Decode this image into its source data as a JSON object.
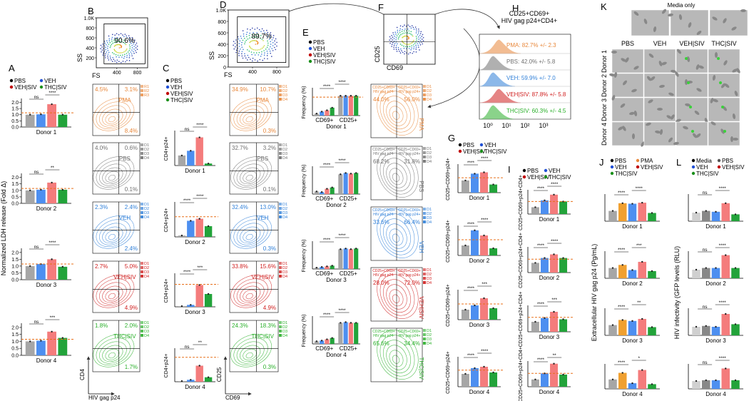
{
  "panels": {
    "A": {
      "letter": "A",
      "legend": [
        "PBS",
        "VEH",
        "VEH|SIV",
        "THC|SIV"
      ],
      "legend_colors": [
        "#000000",
        "#1f4fd6",
        "#c00000",
        "#1a8f1a"
      ],
      "colors": [
        "#a6a6a6",
        "#4d8ff0",
        "#f47c7c",
        "#22a33a"
      ],
      "ylabel": "Normalized LDH release (Fold Δ)",
      "ylim": [
        0,
        2.2
      ],
      "yticks": [
        {
          "value": 0,
          "label": "0.0"
        },
        {
          "value": 0.5,
          "label": "0.5"
        },
        {
          "value": 1,
          "label": "1.0"
        },
        {
          "value": 1.5,
          "label": "1.5"
        },
        {
          "value": 2,
          "label": "2.0"
        }
      ],
      "plots": [
        {
          "title": "Donor 1",
          "values": [
            1,
            1.03,
            1.85,
            1.0
          ],
          "ref": 1.15,
          "sig": [
            "ns",
            "****"
          ]
        },
        {
          "title": "Donor 2",
          "values": [
            1,
            1.05,
            1.6,
            1.05
          ],
          "ref": 1.15,
          "sig": [
            "ns",
            "**"
          ]
        },
        {
          "title": "Donor 3",
          "values": [
            1,
            1.15,
            1.5,
            0.95
          ],
          "ref": 1.15,
          "sig": [
            "ns",
            "****"
          ]
        },
        {
          "title": "Donor 4",
          "values": [
            1,
            1.05,
            1.7,
            1.25
          ],
          "ref": 1.15,
          "sig": [
            "ns",
            "***"
          ]
        }
      ]
    },
    "C": {
      "letter": "C",
      "legend": [
        "PBS",
        "VEH",
        "VEH|SIV",
        "THC|SIV"
      ],
      "legend_colors": [
        "#000000",
        "#1f4fd6",
        "#c00000",
        "#1a8f1a"
      ],
      "colors": [
        "#a6a6a6",
        "#4d8ff0",
        "#f47c7c",
        "#22a33a"
      ],
      "ylabel": "CD4+p24+",
      "ylim": [
        0,
        5
      ],
      "plots": [
        {
          "title": "Donor 1",
          "values": [
            1.5,
            2.2,
            4.2,
            0.3
          ],
          "sig": [
            "ns",
            "****"
          ]
        },
        {
          "title": "Donor 2",
          "values": [
            0.2,
            2.4,
            2.7,
            1.6
          ],
          "ref": 3.0,
          "sig": [
            "****",
            "****"
          ]
        },
        {
          "title": "Donor 3",
          "values": [
            0.1,
            0.3,
            3.4,
            2.0
          ],
          "ref": 3.5,
          "sig": [
            "****",
            "***"
          ]
        },
        {
          "title": "Donor 4",
          "values": [
            0.1,
            0.3,
            2.5,
            0.7
          ],
          "ref": 3.8,
          "sig": [
            "ns",
            "**"
          ]
        }
      ]
    },
    "E": {
      "letter": "E",
      "legend": [
        "PBS",
        "VEH",
        "VEH|SIV",
        "THC|SIV"
      ],
      "legend_colors": [
        "#000000",
        "#1f4fd6",
        "#c00000",
        "#1a8f1a"
      ],
      "colors": [
        "#a6a6a6",
        "#4d8ff0",
        "#f47c7c",
        "#22a33a"
      ],
      "ylabel": "Frequency (%)",
      "groups": [
        "CD69+",
        "CD25+"
      ],
      "ylim": [
        0,
        40
      ],
      "plots": [
        {
          "title": "Donor 1",
          "values": [
            3,
            6,
            8,
            12,
            30,
            30,
            30,
            30
          ],
          "ref": 28,
          "sig": [
            "****",
            "****"
          ]
        },
        {
          "title": "Donor 2",
          "values": [
            4,
            3,
            8,
            10,
            30,
            32,
            31,
            32
          ],
          "sig": [
            "****",
            "****"
          ]
        },
        {
          "title": "Donor 3",
          "values": [
            2,
            3,
            4,
            5,
            30,
            31,
            30,
            31
          ],
          "sig": [
            "****",
            "****"
          ]
        },
        {
          "title": "Donor 4",
          "values": [
            4,
            5,
            7,
            9,
            32,
            33,
            32,
            32
          ],
          "sig": [
            "****",
            "****"
          ]
        }
      ]
    },
    "G": {
      "letter": "G",
      "legend": [
        "PBS",
        "VEH",
        "VEH|SIV",
        "THC|SIV"
      ],
      "legend_colors": [
        "#000000",
        "#1f4fd6",
        "#c00000",
        "#1a8f1a"
      ],
      "colors": [
        "#a6a6a6",
        "#4d8ff0",
        "#f47c7c",
        "#22a33a"
      ],
      "ylabel": "CD25+CD69+p24+",
      "ylim": [
        0,
        100
      ],
      "plots": [
        {
          "title": "Donor 1",
          "values": [
            45,
            70,
            75,
            30
          ],
          "ref": 55,
          "sig": [
            "****",
            "****"
          ]
        },
        {
          "title": "Donor 2",
          "values": [
            35,
            88,
            70,
            25
          ],
          "ref": 55,
          "sig": [
            "****",
            "****"
          ]
        },
        {
          "title": "Donor 3",
          "values": [
            35,
            50,
            75,
            40
          ],
          "ref": 55,
          "sig": [
            "****",
            "***"
          ]
        },
        {
          "title": "Donor 4",
          "values": [
            45,
            65,
            70,
            50
          ],
          "ref": 58,
          "sig": [
            "****",
            "****"
          ]
        }
      ]
    },
    "I": {
      "letter": "I",
      "legend": [
        "PBS",
        "VEH",
        "VEH|SIV",
        "THC|SIV"
      ],
      "legend_colors": [
        "#000000",
        "#1f4fd6",
        "#c00000",
        "#1a8f1a"
      ],
      "colors": [
        "#a6a6a6",
        "#4d8ff0",
        "#f47c7c",
        "#22a33a"
      ],
      "ylabel": "CD25+CD69+p24+CD4+",
      "ylim": [
        0,
        100
      ],
      "plots": [
        {
          "title": "Donor 1",
          "values": [
            30,
            60,
            85,
            55
          ],
          "ref": 55,
          "sig": [
            "****",
            "****"
          ]
        },
        {
          "title": "Donor 2",
          "values": [
            40,
            60,
            75,
            60
          ],
          "ref": 55,
          "sig": [
            "****",
            "****"
          ]
        },
        {
          "title": "Donor 3",
          "values": [
            40,
            55,
            80,
            50
          ],
          "ref": 58,
          "sig": [
            "****",
            "***"
          ]
        },
        {
          "title": "Donor 4",
          "values": [
            30,
            55,
            95,
            50
          ],
          "ref": 55,
          "sig": [
            "****",
            "**"
          ]
        }
      ]
    },
    "J": {
      "letter": "J",
      "legend": [
        "PBS",
        "PMA",
        "VEH",
        "VEH|SIV",
        "THC|SIV"
      ],
      "legend_colors": [
        "#000000",
        "#e8873a",
        "#1f4fd6",
        "#c00000",
        "#1a8f1a"
      ],
      "colors": [
        "#a6a6a6",
        "#f0a030",
        "#4d8ff0",
        "#f47c7c",
        "#22a33a"
      ],
      "ylabel": "Extracellular HIV gag p24 (Pg/mL)",
      "ylim": [
        0,
        2.5
      ],
      "plots": [
        {
          "title": "Donor 1",
          "values": [
            1,
            1.75,
            1.7,
            1.8,
            0.8
          ],
          "sig": [
            "****",
            "****"
          ]
        },
        {
          "title": "Donor 2",
          "values": [
            1,
            1.3,
            0.8,
            1.6,
            0.7
          ],
          "sig": [
            "****",
            "***"
          ]
        },
        {
          "title": "Donor 3",
          "values": [
            1,
            1.5,
            1.4,
            1.6,
            0.8
          ],
          "sig": [
            "****",
            "**"
          ]
        },
        {
          "title": "Donor 4",
          "values": [
            1,
            1.7,
            0.6,
            2.0,
            0.5
          ],
          "sig": [
            "****",
            "*"
          ]
        }
      ]
    },
    "L": {
      "letter": "L",
      "legend": [
        "Media",
        "PBS",
        "VEH",
        "VEH|SIV",
        "THC|SIV"
      ],
      "legend_colors": [
        "#000000",
        "#555555",
        "#1f4fd6",
        "#c00000",
        "#1a8f1a"
      ],
      "colors": [
        "#d0d0d0",
        "#888888",
        "#4d8ff0",
        "#f47c7c",
        "#22a33a"
      ],
      "ylabel": "HIV infectivity (GFP levels (RLU)",
      "ylim": [
        0,
        3
      ],
      "plots": [
        {
          "title": "Donor 1",
          "values": [
            1,
            1.2,
            1.1,
            2.1,
            0.8
          ],
          "sig": [
            "ns",
            "****"
          ]
        },
        {
          "title": "Donor 2",
          "values": [
            1,
            1.2,
            1.2,
            2.7,
            1.2
          ],
          "sig": [
            "ns",
            "****"
          ]
        },
        {
          "title": "Donor 3",
          "values": [
            1,
            1.1,
            1.0,
            2.5,
            1.3
          ],
          "sig": [
            "ns",
            "****"
          ]
        },
        {
          "title": "Donor 4",
          "values": [
            1,
            1.1,
            1.1,
            2.6,
            1.1
          ],
          "sig": [
            "ns",
            "****"
          ]
        }
      ]
    }
  },
  "scatter": {
    "B": {
      "letter": "B",
      "gate": "90.6%",
      "ylabel": "SS",
      "xlabel": "FS",
      "xlim": [
        0,
        1000
      ],
      "ylim": [
        0,
        1000
      ],
      "yticks": [
        {
          "value": 1000,
          "label": "1.0K"
        },
        800,
        600,
        400,
        200
      ],
      "xticks": [
        400,
        800
      ]
    },
    "D": {
      "letter": "D",
      "gate": "89.7%",
      "ylabel": "SS",
      "xlabel": "FS",
      "xlim": [
        0,
        1000
      ],
      "ylim": [
        0,
        1000
      ],
      "yticks": [
        {
          "value": 1000,
          "label": "1.0K"
        },
        800,
        600,
        400,
        200,
        0
      ],
      "xticks": [
        400,
        800
      ]
    },
    "F": {
      "letter": "F",
      "ylabel": "CD25",
      "xlabel": "CD69"
    }
  },
  "flow": {
    "C": {
      "ylabel": "CD4",
      "xlabel": "HIV gag p24",
      "plots": [
        {
          "label": "PMA",
          "color": "#e8873a",
          "q": [
            "4.5%",
            "3.1%",
            "8.4%"
          ],
          "tags": [
            "R1",
            "R2",
            "R3"
          ]
        },
        {
          "label": "PBS",
          "color": "#707070",
          "q": [
            "4.0%",
            "0.6%",
            "0.1%"
          ],
          "tags": [
            "D1",
            "D2",
            "D3",
            "D4"
          ]
        },
        {
          "label": "VEH",
          "color": "#2f7fd8",
          "q": [
            "2.3%",
            "2.4%",
            "2.4%"
          ],
          "tags": [
            "D1",
            "D2",
            "D3",
            "D4"
          ]
        },
        {
          "label": "VEH|SIV",
          "color": "#d02020",
          "q": [
            "2.7%",
            "5.0%",
            "4.9%"
          ],
          "tags": [
            "D1",
            "D2",
            "D3",
            "D4"
          ]
        },
        {
          "label": "THC|SIV",
          "color": "#2bb02b",
          "q": [
            "1.8%",
            "2.0%",
            "1.7%"
          ],
          "tags": [
            "D1",
            "D2",
            "D3",
            "D4"
          ]
        }
      ]
    },
    "D": {
      "ylabel": "CD25",
      "xlabel": "CD69",
      "plots": [
        {
          "label": "PMA",
          "color": "#e8873a",
          "q": [
            "34.9%",
            "10.7%",
            "0.3%"
          ],
          "tags": [
            "D1",
            "D2",
            "D3",
            "D4"
          ]
        },
        {
          "label": "PBS",
          "color": "#707070",
          "q": [
            "32.7%",
            "3.2%",
            "0.1%"
          ],
          "tags": [
            "D1",
            "D2",
            "D3",
            "D4"
          ]
        },
        {
          "label": "VEH",
          "color": "#2f7fd8",
          "q": [
            "32.4%",
            "13.0%",
            "0.3%"
          ],
          "tags": [
            "D1",
            "D2",
            "D3",
            "D4"
          ]
        },
        {
          "label": "VEH|SIV",
          "color": "#d02020",
          "q": [
            "33.8%",
            "15.6%",
            "4.9%"
          ],
          "tags": [
            "D1",
            "D2",
            "D3",
            "D4"
          ]
        },
        {
          "label": "THC|SIV",
          "color": "#2bb02b",
          "q": [
            "24.3%",
            "18.3%",
            "0.3%"
          ],
          "tags": [
            "D1",
            "D2",
            "D3",
            "D4"
          ]
        }
      ]
    },
    "F": {
      "plots": [
        {
          "label": "PMA",
          "color": "#e8873a",
          "left": [
            "CD25+CD69+",
            "HIV gag p24-"
          ],
          "right": [
            "CD25+CD69+",
            "HIV gag p24+"
          ],
          "q": [
            "44.0%",
            "56.0%"
          ],
          "tags": [
            "D1",
            "D2",
            "D3",
            "D4"
          ]
        },
        {
          "label": "PBS",
          "color": "#707070",
          "left": [
            "CD25+CD69+",
            "HIV gag p24-"
          ],
          "right": [
            "CD25+CD69+",
            "HIV gag p24+"
          ],
          "q": [
            "68.2%",
            "31.8%"
          ],
          "tags": [
            "D1",
            "D2",
            "D3",
            "D4"
          ]
        },
        {
          "label": "VEH",
          "color": "#2f7fd8",
          "left": [
            "CD25+CD69+",
            "HIV gag p24-"
          ],
          "right": [
            "CD25+CD69+",
            "HIV gag p24+"
          ],
          "q": [
            "33.6%",
            "66.4%"
          ],
          "tags": [
            "D1",
            "D2",
            "D3",
            "D4"
          ]
        },
        {
          "label": "VEH|SIV",
          "color": "#d02020",
          "left": [
            "CD25+CD69+",
            "HIV gag p24-"
          ],
          "right": [
            "CD25+CD69+",
            "HIV gag p24+"
          ],
          "q": [
            "28.0%",
            "72.0%"
          ],
          "tags": [
            "D1",
            "D2",
            "D3",
            "D4"
          ]
        },
        {
          "label": "THC|SIV",
          "color": "#2bb02b",
          "left": [
            "CD25+CD69+",
            "HIV gag p24-"
          ],
          "right": [
            "CD25+CD69+",
            "HIV gag p24+"
          ],
          "q": [
            "65.6%",
            "34.4%"
          ],
          "tags": [
            "D1",
            "D2",
            "D3",
            "D4"
          ]
        }
      ]
    }
  },
  "H": {
    "letter": "H",
    "title": [
      "CD25+CD69+",
      "HIV gag p24+CD4+"
    ],
    "rows": [
      {
        "text": "PMA: 82.7% +/- 2.3",
        "color": "#e8873a"
      },
      {
        "text": "PBS: 42.0% +/- 5.8",
        "color": "#707070"
      },
      {
        "text": "VEH: 59.9% +/- 7.0",
        "color": "#2f7fd8"
      },
      {
        "text": "VEH|SIV: 87.8% +/- 5.8",
        "color": "#d02020"
      },
      {
        "text": "THC|SIV: 60.3% +/- 4.5",
        "color": "#2bb02b"
      }
    ],
    "xticks": [
      "10⁰",
      "10¹",
      "10²",
      "10³"
    ]
  },
  "K": {
    "letter": "K",
    "title": "Media only",
    "columns": [
      "PBS",
      "VEH",
      "VEH|SIV",
      "THC|SIV"
    ],
    "rows": [
      "Donor 1",
      "Donor 2",
      "Donor 3",
      "Donor 4"
    ]
  }
}
